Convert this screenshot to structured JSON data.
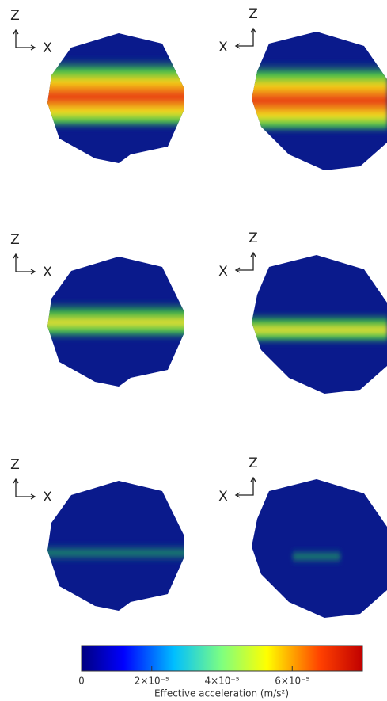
{
  "panels": [
    {
      "vertical_axis": "Z",
      "horizontal_axis": "X"
    },
    {
      "vertical_axis": "Z",
      "horizontal_axis": "X"
    },
    {
      "vertical_axis": "Z",
      "horizontal_axis": "X"
    },
    {
      "vertical_axis": "Z",
      "horizontal_axis": "X"
    },
    {
      "vertical_axis": "Z",
      "horizontal_axis": "X"
    },
    {
      "vertical_axis": "Z",
      "horizontal_axis": "X"
    }
  ],
  "colorbar": {
    "label": "Effective acceleration (m/s²)",
    "lim": [
      0,
      8e-05
    ],
    "ticks": [
      0,
      {
        "value": 2e-05,
        "label": "2×10⁻⁵"
      },
      {
        "value": 4e-05,
        "label": "4×10⁻⁵"
      },
      {
        "value": 6e-05,
        "label": "6×10⁻⁵"
      }
    ]
  }
}
